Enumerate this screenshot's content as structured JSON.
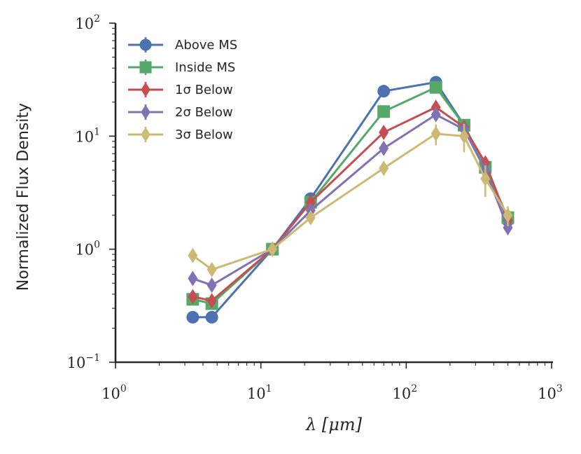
{
  "chart_data": {
    "type": "line",
    "title": "",
    "xlabel": "λ [μm]",
    "ylabel": "Normalized Flux Density",
    "xscale": "log",
    "yscale": "log",
    "xlim": [
      1,
      1000
    ],
    "ylim": [
      0.1,
      100
    ],
    "x_ticks": [
      "10^0",
      "10^1",
      "10^2",
      "10^3"
    ],
    "y_ticks": [
      "10^-1",
      "10^0",
      "10^1",
      "10^2"
    ],
    "grid": false,
    "legend_position": "top-left",
    "x": [
      3.4,
      4.6,
      12,
      22,
      70,
      160,
      250,
      350,
      500
    ],
    "series": [
      {
        "name": "Above MS",
        "marker": "circle",
        "color": "#4c72b0",
        "values": [
          0.25,
          0.25,
          1.0,
          2.8,
          25,
          30,
          12.5,
          5.3,
          1.8
        ],
        "errors": [
          0.01,
          0.01,
          0.03,
          0.1,
          1.0,
          1.5,
          0.8,
          0.5,
          0.2
        ]
      },
      {
        "name": "Inside MS",
        "marker": "square",
        "color": "#55a868",
        "values": [
          0.36,
          0.33,
          1.0,
          2.6,
          16.5,
          27,
          12.5,
          5.3,
          1.9
        ],
        "errors": [
          0.02,
          0.02,
          0.03,
          0.1,
          1.0,
          1.5,
          0.8,
          0.5,
          0.2
        ]
      },
      {
        "name": "1σ Below",
        "marker": "thin_diamond",
        "color": "#c44e52",
        "values": [
          0.38,
          0.35,
          1.0,
          2.6,
          10.8,
          18,
          12,
          5.8,
          1.8
        ],
        "errors": [
          0.04,
          0.04,
          0.03,
          0.15,
          1.0,
          2.0,
          1.0,
          0.6,
          0.2
        ]
      },
      {
        "name": "2σ Below",
        "marker": "thin_diamond",
        "color": "#8172b2",
        "values": [
          0.55,
          0.48,
          1.0,
          2.2,
          7.8,
          15.5,
          11.5,
          5.0,
          1.55
        ],
        "errors": [
          0.05,
          0.05,
          0.03,
          0.15,
          0.8,
          1.5,
          1.0,
          0.6,
          0.2
        ]
      },
      {
        "name": "3σ Below",
        "marker": "thin_diamond",
        "color": "#ccb974",
        "values": [
          0.88,
          0.66,
          1.0,
          1.9,
          5.2,
          10.5,
          10,
          4.2,
          2.0
        ],
        "errors": [
          0.08,
          0.07,
          0.04,
          0.15,
          0.7,
          2.2,
          2.8,
          1.3,
          0.4
        ]
      }
    ]
  }
}
